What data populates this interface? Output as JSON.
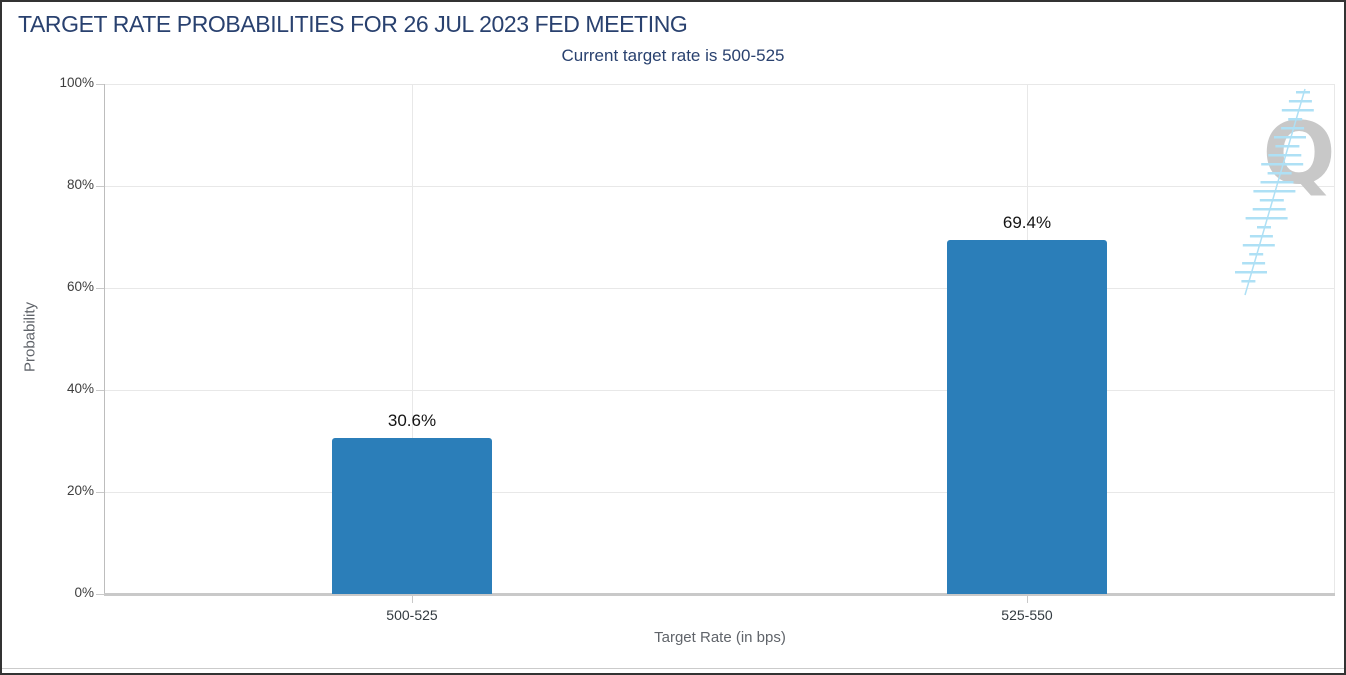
{
  "chart_data": {
    "type": "bar",
    "title": "TARGET RATE PROBABILITIES FOR 26 JUL 2023 FED MEETING",
    "subtitle": "Current target rate is 500-525",
    "xlabel": "Target Rate (in bps)",
    "ylabel": "Probability",
    "categories": [
      "500-525",
      "525-550"
    ],
    "values": [
      30.6,
      69.4
    ],
    "value_labels": [
      "30.6%",
      "69.4%"
    ],
    "ylim": [
      0,
      100
    ],
    "ytick_labels": [
      "0%",
      "20%",
      "40%",
      "60%",
      "80%",
      "100%"
    ],
    "ytick_values": [
      0,
      20,
      40,
      60,
      80,
      100
    ],
    "grid": true,
    "legend": "none",
    "colors": {
      "bar": "#2b7eb9",
      "title_text": "#29416f",
      "axis_text": "#3d3d3d",
      "axis_title_text": "#60646a",
      "value_label_text": "#141414",
      "gridline": "#e8e8e8",
      "axis_line": "#c9c9c9"
    }
  },
  "watermark": {
    "letter": "Q",
    "letter_color": "#c8c8c8",
    "hatch_color": "#aee0f5"
  }
}
